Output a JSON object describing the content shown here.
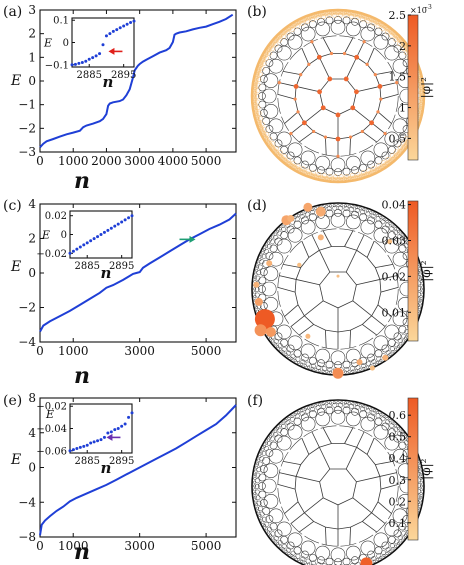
{
  "chart_data": [
    {
      "panel": "(a)",
      "type": "line",
      "xlabel": "n",
      "ylabel": "E",
      "xlim": [
        0,
        5900
      ],
      "ylim": [
        -3,
        3
      ],
      "xticks": [
        "0",
        "1000",
        "2000",
        "3000",
        "4000",
        "5000"
      ],
      "yticks": [
        "-3",
        "-2",
        "-1",
        "0",
        "1",
        "2",
        "3"
      ],
      "series": [
        {
          "color": "#1f3fd6",
          "x": [
            0,
            100,
            200,
            400,
            600,
            800,
            1000,
            1200,
            1300,
            1400,
            1600,
            1800,
            1900,
            2000,
            2050,
            2100,
            2200,
            2400,
            2500,
            2600,
            2700,
            2800,
            2850,
            2900,
            2950,
            3000,
            3100,
            3200,
            3400,
            3600,
            3800,
            3900,
            4000,
            4050,
            4100,
            4200,
            4400,
            4600,
            4800,
            5000,
            5200,
            5400,
            5600,
            5800
          ],
          "y": [
            -2.8,
            -2.65,
            -2.55,
            -2.45,
            -2.35,
            -2.25,
            -2.18,
            -2.1,
            -1.95,
            -1.88,
            -1.8,
            -1.7,
            -1.6,
            -1.4,
            -1.05,
            -0.95,
            -0.9,
            -0.85,
            -0.78,
            -0.6,
            -0.35,
            0.15,
            0.45,
            0.55,
            0.65,
            0.72,
            0.82,
            0.9,
            1.05,
            1.2,
            1.3,
            1.4,
            1.65,
            1.95,
            2.0,
            2.05,
            2.1,
            2.18,
            2.25,
            2.3,
            2.4,
            2.5,
            2.62,
            2.8
          ]
        }
      ],
      "inset": {
        "ylabel": "E",
        "xlim": [
          2880,
          2898
        ],
        "ylim": [
          -0.11,
          0.11
        ],
        "xticks": [
          "2885",
          "2895"
        ],
        "yticks": [
          "0.1",
          "0",
          "-0.1"
        ],
        "x": [
          2880,
          2881,
          2882,
          2883,
          2884,
          2885,
          2886,
          2887,
          2888,
          2889,
          2890,
          2891,
          2892,
          2893,
          2894,
          2895,
          2896,
          2897,
          2898
        ],
        "y": [
          -0.1,
          -0.098,
          -0.094,
          -0.09,
          -0.084,
          -0.075,
          -0.068,
          -0.06,
          -0.05,
          -0.01,
          0.03,
          0.04,
          0.05,
          0.058,
          0.066,
          0.074,
          0.082,
          0.09,
          0.096
        ],
        "arrow_color": "#e0201a"
      }
    },
    {
      "panel": "(c)",
      "type": "line",
      "xlabel": "n",
      "ylabel": "E",
      "xlim": [
        0,
        5900
      ],
      "ylim": [
        -4,
        4
      ],
      "xticks": [
        "0",
        "1000",
        "3000",
        "5000"
      ],
      "yticks": [
        "-4",
        "-2",
        "0",
        "2",
        "4"
      ],
      "series": [
        {
          "color": "#1f3fd6",
          "x": [
            0,
            100,
            300,
            600,
            900,
            1200,
            1500,
            1800,
            2000,
            2200,
            2500,
            2800,
            2900,
            3000,
            3100,
            3300,
            3600,
            3900,
            4200,
            4500,
            4800,
            5100,
            5400,
            5700,
            5900
          ],
          "y": [
            -3.4,
            -3.05,
            -2.8,
            -2.5,
            -2.2,
            -1.85,
            -1.5,
            -1.15,
            -0.85,
            -0.7,
            -0.4,
            -0.05,
            0.0,
            0.05,
            0.3,
            0.55,
            0.9,
            1.25,
            1.6,
            1.95,
            2.25,
            2.55,
            2.8,
            3.1,
            3.45
          ]
        }
      ],
      "inset": {
        "ylabel": "E",
        "xlim": [
          2880,
          2898
        ],
        "ylim": [
          -0.025,
          0.025
        ],
        "xticks": [
          "2885",
          "2895"
        ],
        "yticks": [
          "0.02",
          "0",
          "-0.02"
        ],
        "x": [
          2880,
          2881,
          2882,
          2883,
          2884,
          2885,
          2886,
          2887,
          2888,
          2889,
          2890,
          2891,
          2892,
          2893,
          2894,
          2895,
          2896,
          2897,
          2898
        ],
        "y": [
          -0.02,
          -0.0178,
          -0.0156,
          -0.0133,
          -0.0111,
          -0.0089,
          -0.0067,
          -0.0044,
          -0.0022,
          0.0,
          0.0022,
          0.0044,
          0.0067,
          0.0089,
          0.0111,
          0.0133,
          0.0156,
          0.0178,
          0.02
        ]
      },
      "arrow_color": "#1e9e74"
    },
    {
      "panel": "(e)",
      "type": "line",
      "xlabel": "n",
      "ylabel": "E",
      "xlim": [
        0,
        5900
      ],
      "ylim": [
        -8,
        8
      ],
      "xticks": [
        "0",
        "1000",
        "3000",
        "5000"
      ],
      "yticks": [
        "-8",
        "-4",
        "0",
        "4",
        "8"
      ],
      "series": [
        {
          "color": "#1f3fd6",
          "x": [
            0,
            50,
            150,
            300,
            500,
            700,
            900,
            1100,
            1400,
            1700,
            2000,
            2300,
            2600,
            2900,
            3200,
            3500,
            3800,
            4100,
            4400,
            4700,
            5000,
            5300,
            5600,
            5900
          ],
          "y": [
            -7.8,
            -6.6,
            -6.1,
            -5.6,
            -5.0,
            -4.5,
            -3.9,
            -3.5,
            -3.0,
            -2.5,
            -2.0,
            -1.4,
            -0.8,
            -0.2,
            0.4,
            1.0,
            1.6,
            2.2,
            2.9,
            3.6,
            4.3,
            5.0,
            6.0,
            7.2
          ]
        }
      ],
      "inset": {
        "ylabel": "E",
        "xlim": [
          2880,
          2898
        ],
        "ylim": [
          -0.062,
          -0.018
        ],
        "xticks": [
          "2885",
          "2895"
        ],
        "yticks": [
          "-0.02",
          "-0.04",
          "-0.06"
        ],
        "x": [
          2880,
          2881,
          2882,
          2883,
          2884,
          2885,
          2886,
          2887,
          2888,
          2889,
          2890,
          2891,
          2892,
          2893,
          2894,
          2895,
          2896,
          2897,
          2898
        ],
        "y": [
          -0.06,
          -0.059,
          -0.058,
          -0.057,
          -0.056,
          -0.055,
          -0.053,
          -0.052,
          -0.051,
          -0.05,
          -0.048,
          -0.044,
          -0.043,
          -0.041,
          -0.04,
          -0.038,
          -0.036,
          -0.03,
          -0.026
        ],
        "arrow_color": "#6a2fb0"
      }
    }
  ],
  "tilings": [
    {
      "panel": "(b)",
      "colorbar": {
        "scale_label": "×10",
        "scale_exp": "−3",
        "ticks": [
          "2.5",
          "2",
          "1.5",
          "1",
          "0.5"
        ],
        "label": "|φ|²",
        "low": "#fbd79a",
        "high": "#ee5a24"
      },
      "rim_color": "#f4b96c"
    },
    {
      "panel": "(d)",
      "colorbar": {
        "ticks": [
          "0.04",
          "0.03",
          "0.02",
          "0.01"
        ],
        "label": "|φ|²",
        "low": "#fbd79a",
        "high": "#ee5a24"
      },
      "rim_color": "#111111"
    },
    {
      "panel": "(f)",
      "colorbar": {
        "ticks": [
          "0.6",
          "0.5",
          "0.4",
          "0.3",
          "0.2",
          "0.1"
        ],
        "label": "|φ|²",
        "low": "#fbd79a",
        "high": "#ee5a24"
      },
      "rim_color": "#111111"
    }
  ]
}
